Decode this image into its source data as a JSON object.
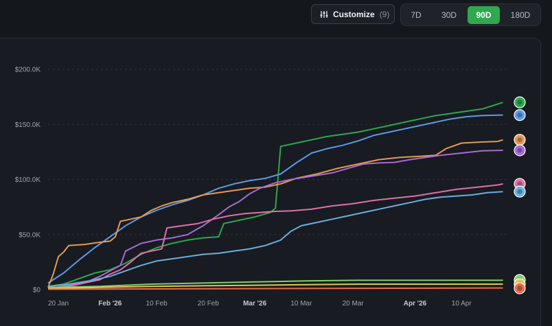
{
  "toolbar": {
    "customize_label": "Customize",
    "customize_count": "(9)",
    "ranges": [
      "7D",
      "30D",
      "90D",
      "180D"
    ],
    "active_range": "90D"
  },
  "chart_data": {
    "type": "line",
    "y_ticks": [
      "$200.0K",
      "$150.0K",
      "$100.0K",
      "$50.0K",
      "$0"
    ],
    "ylim": [
      0,
      200000
    ],
    "x_ticks": [
      {
        "label": "20 Jan",
        "bold": false,
        "day": 0
      },
      {
        "label": "Feb '26",
        "bold": true,
        "day": 12
      },
      {
        "label": "10 Feb",
        "bold": false,
        "day": 21
      },
      {
        "label": "20 Feb",
        "bold": false,
        "day": 31
      },
      {
        "label": "Mar '26",
        "bold": true,
        "day": 40
      },
      {
        "label": "10 Mar",
        "bold": false,
        "day": 49
      },
      {
        "label": "20 Mar",
        "bold": false,
        "day": 59
      },
      {
        "label": "Apr '26",
        "bold": true,
        "day": 71
      },
      {
        "label": "10 Apr",
        "bold": false,
        "day": 80
      }
    ],
    "xlim_days": [
      0,
      89
    ],
    "grid": true,
    "series": [
      {
        "color": "#2fa84f",
        "icon": "green-globe-token-icon",
        "points": [
          [
            0,
            3000
          ],
          [
            3,
            5000
          ],
          [
            6,
            10000
          ],
          [
            9,
            15000
          ],
          [
            12,
            18000
          ],
          [
            15,
            24000
          ],
          [
            18,
            32000
          ],
          [
            21,
            38000
          ],
          [
            24,
            42000
          ],
          [
            27,
            45000
          ],
          [
            30,
            47000
          ],
          [
            33,
            48000
          ],
          [
            34,
            60000
          ],
          [
            37,
            63000
          ],
          [
            40,
            66000
          ],
          [
            43,
            70000
          ],
          [
            44,
            74000
          ],
          [
            45,
            130000
          ],
          [
            48,
            133000
          ],
          [
            51,
            136000
          ],
          [
            54,
            139000
          ],
          [
            57,
            141000
          ],
          [
            60,
            143000
          ],
          [
            63,
            146000
          ],
          [
            66,
            149000
          ],
          [
            69,
            152000
          ],
          [
            72,
            155000
          ],
          [
            75,
            158000
          ],
          [
            78,
            160000
          ],
          [
            81,
            162000
          ],
          [
            84,
            164000
          ],
          [
            86,
            167000
          ],
          [
            88,
            170000
          ]
        ]
      },
      {
        "color": "#5b9be8",
        "icon": "shiba-token-icon",
        "points": [
          [
            0,
            6000
          ],
          [
            3,
            15000
          ],
          [
            6,
            27000
          ],
          [
            9,
            38000
          ],
          [
            12,
            48000
          ],
          [
            15,
            58000
          ],
          [
            18,
            66000
          ],
          [
            21,
            72000
          ],
          [
            24,
            77000
          ],
          [
            27,
            81000
          ],
          [
            30,
            86000
          ],
          [
            33,
            92000
          ],
          [
            36,
            96000
          ],
          [
            39,
            99000
          ],
          [
            42,
            101000
          ],
          [
            45,
            105000
          ],
          [
            48,
            115000
          ],
          [
            51,
            124000
          ],
          [
            54,
            128000
          ],
          [
            57,
            131000
          ],
          [
            60,
            135000
          ],
          [
            63,
            140000
          ],
          [
            66,
            143000
          ],
          [
            69,
            146000
          ],
          [
            72,
            149000
          ],
          [
            75,
            152000
          ],
          [
            78,
            155000
          ],
          [
            81,
            157000
          ],
          [
            84,
            158000
          ],
          [
            88,
            158500
          ]
        ]
      },
      {
        "color": "#e89a4f",
        "icon": "blue-orb-token-icon",
        "points": [
          [
            0,
            2000
          ],
          [
            1,
            14000
          ],
          [
            2,
            30000
          ],
          [
            3,
            34000
          ],
          [
            4,
            40000
          ],
          [
            7,
            41000
          ],
          [
            10,
            43000
          ],
          [
            12,
            44000
          ],
          [
            13,
            48000
          ],
          [
            14,
            62000
          ],
          [
            16,
            64000
          ],
          [
            18,
            66000
          ],
          [
            20,
            72000
          ],
          [
            22,
            76000
          ],
          [
            24,
            79000
          ],
          [
            27,
            82000
          ],
          [
            30,
            86000
          ],
          [
            33,
            88000
          ],
          [
            36,
            90000
          ],
          [
            39,
            92000
          ],
          [
            42,
            93000
          ],
          [
            45,
            96000
          ],
          [
            48,
            101000
          ],
          [
            52,
            105000
          ],
          [
            56,
            110000
          ],
          [
            60,
            114000
          ],
          [
            64,
            118000
          ],
          [
            68,
            120000
          ],
          [
            72,
            121000
          ],
          [
            75,
            122000
          ],
          [
            77,
            128000
          ],
          [
            80,
            133000
          ],
          [
            84,
            134000
          ],
          [
            87,
            134500
          ],
          [
            88,
            136000
          ]
        ]
      },
      {
        "color": "#a86bd9",
        "icon": "red-face-token-icon",
        "points": [
          [
            0,
            1000
          ],
          [
            4,
            4000
          ],
          [
            8,
            8000
          ],
          [
            10,
            12000
          ],
          [
            12,
            17000
          ],
          [
            14,
            22000
          ],
          [
            15,
            35000
          ],
          [
            18,
            42000
          ],
          [
            21,
            45000
          ],
          [
            24,
            47000
          ],
          [
            27,
            50000
          ],
          [
            30,
            58000
          ],
          [
            33,
            68000
          ],
          [
            35,
            75000
          ],
          [
            37,
            80000
          ],
          [
            39,
            87000
          ],
          [
            41,
            92000
          ],
          [
            44,
            97000
          ],
          [
            47,
            100000
          ],
          [
            51,
            103000
          ],
          [
            55,
            106000
          ],
          [
            58,
            110000
          ],
          [
            61,
            114000
          ],
          [
            64,
            115000
          ],
          [
            67,
            115500
          ],
          [
            70,
            118000
          ],
          [
            73,
            120000
          ],
          [
            76,
            122000
          ],
          [
            80,
            124000
          ],
          [
            84,
            126000
          ],
          [
            88,
            126500
          ]
        ]
      },
      {
        "color": "#e070a8",
        "icon": "orange-bear-token-icon",
        "points": [
          [
            0,
            500
          ],
          [
            5,
            4000
          ],
          [
            10,
            9000
          ],
          [
            12,
            14000
          ],
          [
            14,
            18000
          ],
          [
            16,
            25000
          ],
          [
            18,
            33000
          ],
          [
            20,
            35000
          ],
          [
            22,
            37000
          ],
          [
            23,
            56000
          ],
          [
            26,
            58000
          ],
          [
            29,
            60000
          ],
          [
            32,
            64000
          ],
          [
            35,
            67000
          ],
          [
            38,
            69000
          ],
          [
            41,
            70000
          ],
          [
            44,
            71000
          ],
          [
            47,
            71500
          ],
          [
            51,
            73000
          ],
          [
            55,
            76000
          ],
          [
            59,
            78000
          ],
          [
            63,
            81000
          ],
          [
            67,
            83000
          ],
          [
            71,
            85000
          ],
          [
            75,
            88000
          ],
          [
            79,
            91000
          ],
          [
            83,
            93000
          ],
          [
            87,
            95000
          ],
          [
            88,
            96000
          ]
        ]
      },
      {
        "color": "#6aaee0",
        "icon": "gold-coin-token-icon",
        "points": [
          [
            0,
            3000
          ],
          [
            4,
            5000
          ],
          [
            8,
            8000
          ],
          [
            12,
            12000
          ],
          [
            15,
            17000
          ],
          [
            18,
            22000
          ],
          [
            21,
            26000
          ],
          [
            24,
            28000
          ],
          [
            27,
            30000
          ],
          [
            30,
            32000
          ],
          [
            33,
            33000
          ],
          [
            36,
            35000
          ],
          [
            39,
            37000
          ],
          [
            42,
            40000
          ],
          [
            45,
            45000
          ],
          [
            47,
            53000
          ],
          [
            49,
            58000
          ],
          [
            52,
            61000
          ],
          [
            55,
            64000
          ],
          [
            58,
            67000
          ],
          [
            61,
            70000
          ],
          [
            64,
            73000
          ],
          [
            67,
            76000
          ],
          [
            70,
            79000
          ],
          [
            73,
            82000
          ],
          [
            76,
            84000
          ],
          [
            79,
            85000
          ],
          [
            82,
            86000
          ],
          [
            85,
            88000
          ],
          [
            88,
            89000
          ]
        ]
      },
      {
        "color": "#7ed16a",
        "icon": "white-panda-token-icon",
        "points": [
          [
            0,
            2000
          ],
          [
            10,
            3000
          ],
          [
            20,
            5000
          ],
          [
            30,
            6000
          ],
          [
            40,
            7000
          ],
          [
            50,
            8000
          ],
          [
            60,
            8500
          ],
          [
            70,
            8500
          ],
          [
            88,
            8500
          ]
        ]
      },
      {
        "color": "#e0c84f",
        "icon": "navy-badge-token-icon",
        "points": [
          [
            0,
            1000
          ],
          [
            10,
            2000
          ],
          [
            20,
            3000
          ],
          [
            30,
            3500
          ],
          [
            40,
            4000
          ],
          [
            50,
            4500
          ],
          [
            60,
            5000
          ],
          [
            70,
            5000
          ],
          [
            88,
            5000
          ]
        ]
      },
      {
        "color": "#e86a4f",
        "icon": "dark-token-icon",
        "points": [
          [
            0,
            300
          ],
          [
            30,
            800
          ],
          [
            60,
            1200
          ],
          [
            88,
            1500
          ]
        ]
      }
    ]
  }
}
